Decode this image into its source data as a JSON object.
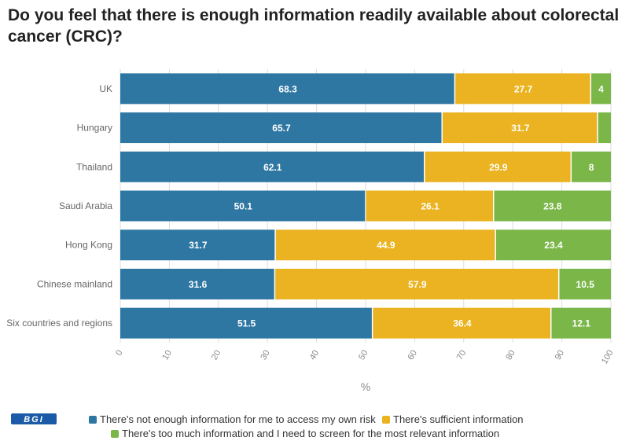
{
  "title": "Do you feel that there is enough information readily available about colorectal cancer (CRC)?",
  "colors": {
    "series": [
      "#2e77a3",
      "#ebb321",
      "#7ab648"
    ],
    "grid": "#dddddd",
    "axis_text": "#888888",
    "label_text": "#ffffff"
  },
  "logo_text": "BGI",
  "chart_data": {
    "type": "bar",
    "orientation": "horizontal",
    "stacked": true,
    "title": "Do you feel that there is enough information readily available about colorectal cancer (CRC)?",
    "xlabel": "%",
    "ylabel": "",
    "xlim": [
      0,
      100
    ],
    "xticks": [
      0,
      10,
      20,
      30,
      40,
      50,
      60,
      70,
      80,
      90,
      100
    ],
    "grid": true,
    "legend_position": "bottom",
    "categories": [
      "UK",
      "Hungary",
      "Thailand",
      "Saudi Arabia",
      "Hong Kong",
      "Chinese mainland",
      "Six countries and regions"
    ],
    "series": [
      {
        "name": "There's not enough information for me to access my own risk",
        "values": [
          68.3,
          65.7,
          62.1,
          50.1,
          31.7,
          31.6,
          51.5
        ],
        "labels": [
          "68.3",
          "65.7",
          "62.1",
          "50.1",
          "31.7",
          "31.6",
          "51.5"
        ]
      },
      {
        "name": "There's sufficient information",
        "values": [
          27.7,
          31.7,
          29.9,
          26.1,
          44.9,
          57.9,
          36.4
        ],
        "labels": [
          "27.7",
          "31.7",
          "29.9",
          "26.1",
          "44.9",
          "57.9",
          "36.4"
        ]
      },
      {
        "name": "There's too much information and I need to screen for the most relevant information",
        "values": [
          4,
          2.6,
          8,
          23.8,
          23.4,
          10.5,
          12.1
        ],
        "labels": [
          "4",
          "",
          "8",
          "23.8",
          "23.4",
          "10.5",
          "12.1"
        ]
      }
    ]
  }
}
